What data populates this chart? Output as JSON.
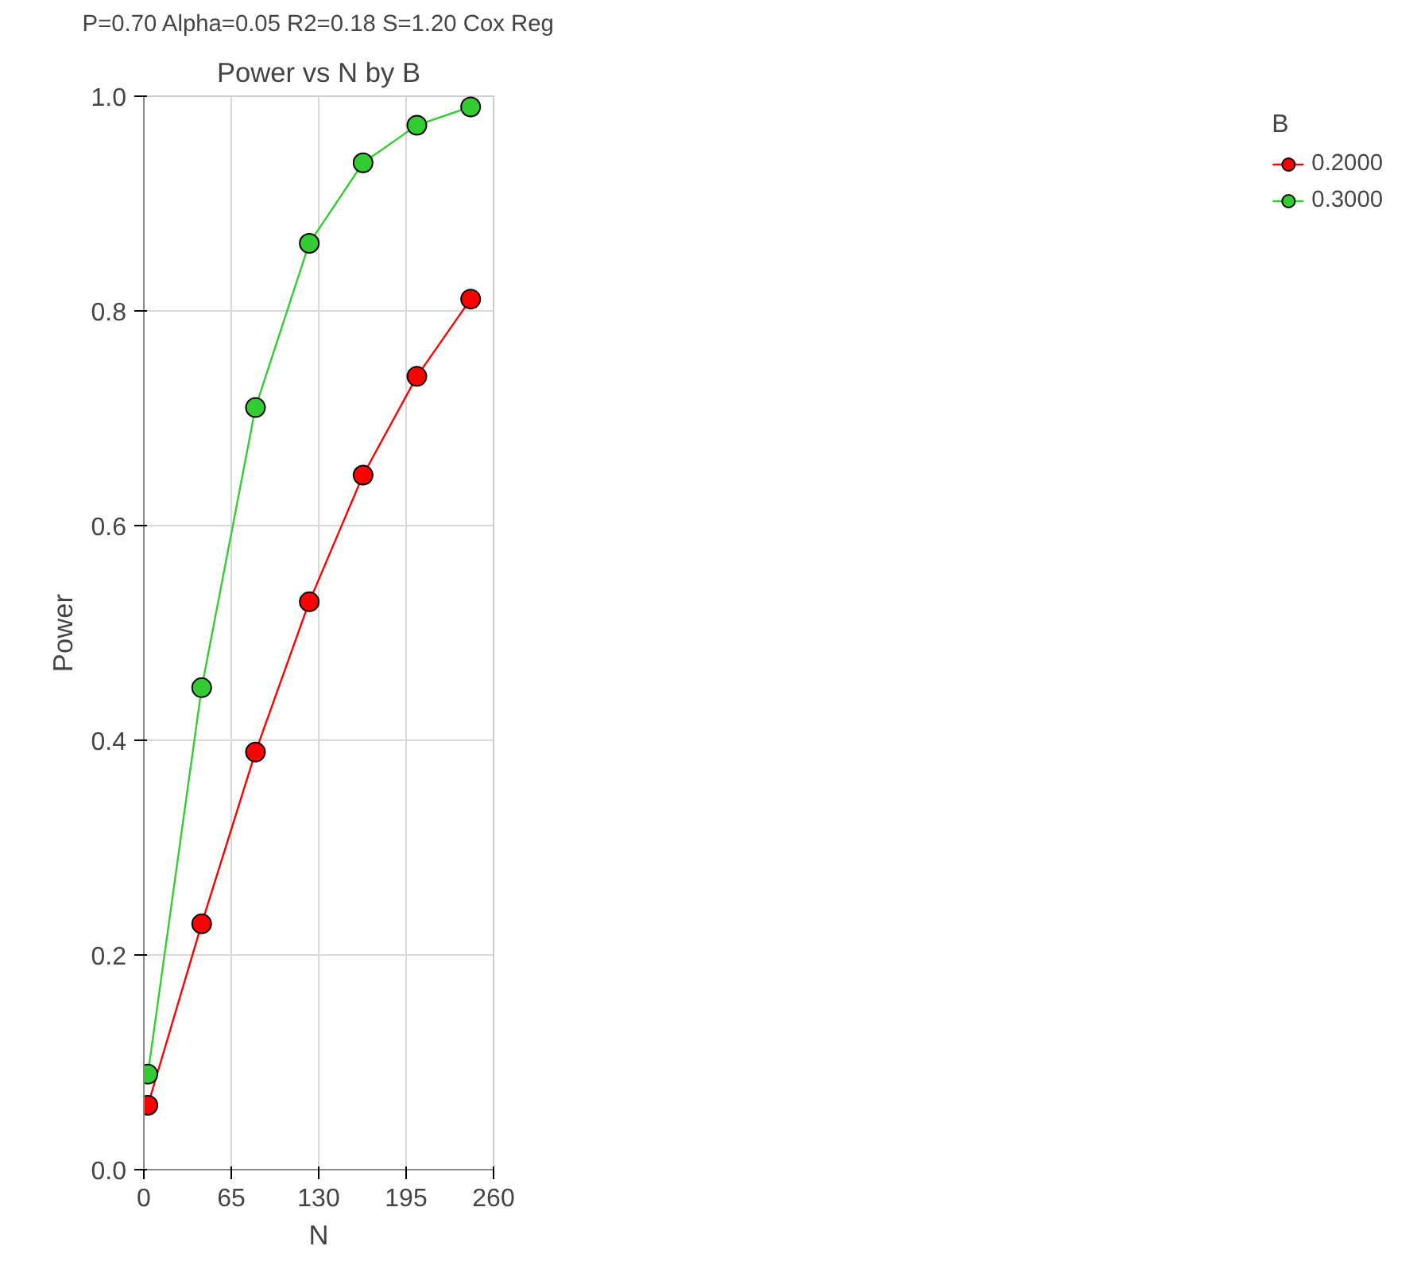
{
  "chart_data": {
    "type": "line",
    "title": "Power vs N by B",
    "subtitle": "P=0.70 Alpha=0.05 R2=0.18 S=1.20 Cox Reg",
    "xlabel": "N",
    "ylabel": "Power",
    "legend_title": "B",
    "x": [
      3,
      43,
      83,
      123,
      163,
      203,
      243
    ],
    "series": [
      {
        "name": "0.2000",
        "color": "#ff0000",
        "values": [
          0.06,
          0.229,
          0.389,
          0.529,
          0.647,
          0.739,
          0.811
        ]
      },
      {
        "name": "0.3000",
        "color": "#33cc33",
        "values": [
          0.089,
          0.449,
          0.71,
          0.863,
          0.938,
          0.973,
          0.99
        ]
      }
    ],
    "xlim": [
      0,
      260
    ],
    "xticks": [
      0,
      65,
      130,
      195,
      260
    ],
    "ylim": [
      0,
      1
    ],
    "yticks": [
      {
        "value": 0,
        "label": "0.0"
      },
      {
        "value": 0.2,
        "label": "0.2"
      },
      {
        "value": 0.4,
        "label": "0.4"
      },
      {
        "value": 0.6,
        "label": "0.6"
      },
      {
        "value": 0.8,
        "label": "0.8"
      },
      {
        "value": 1,
        "label": "1.0"
      }
    ],
    "grid": true,
    "legend": "right",
    "marker": "circle",
    "line_style": "solid"
  }
}
